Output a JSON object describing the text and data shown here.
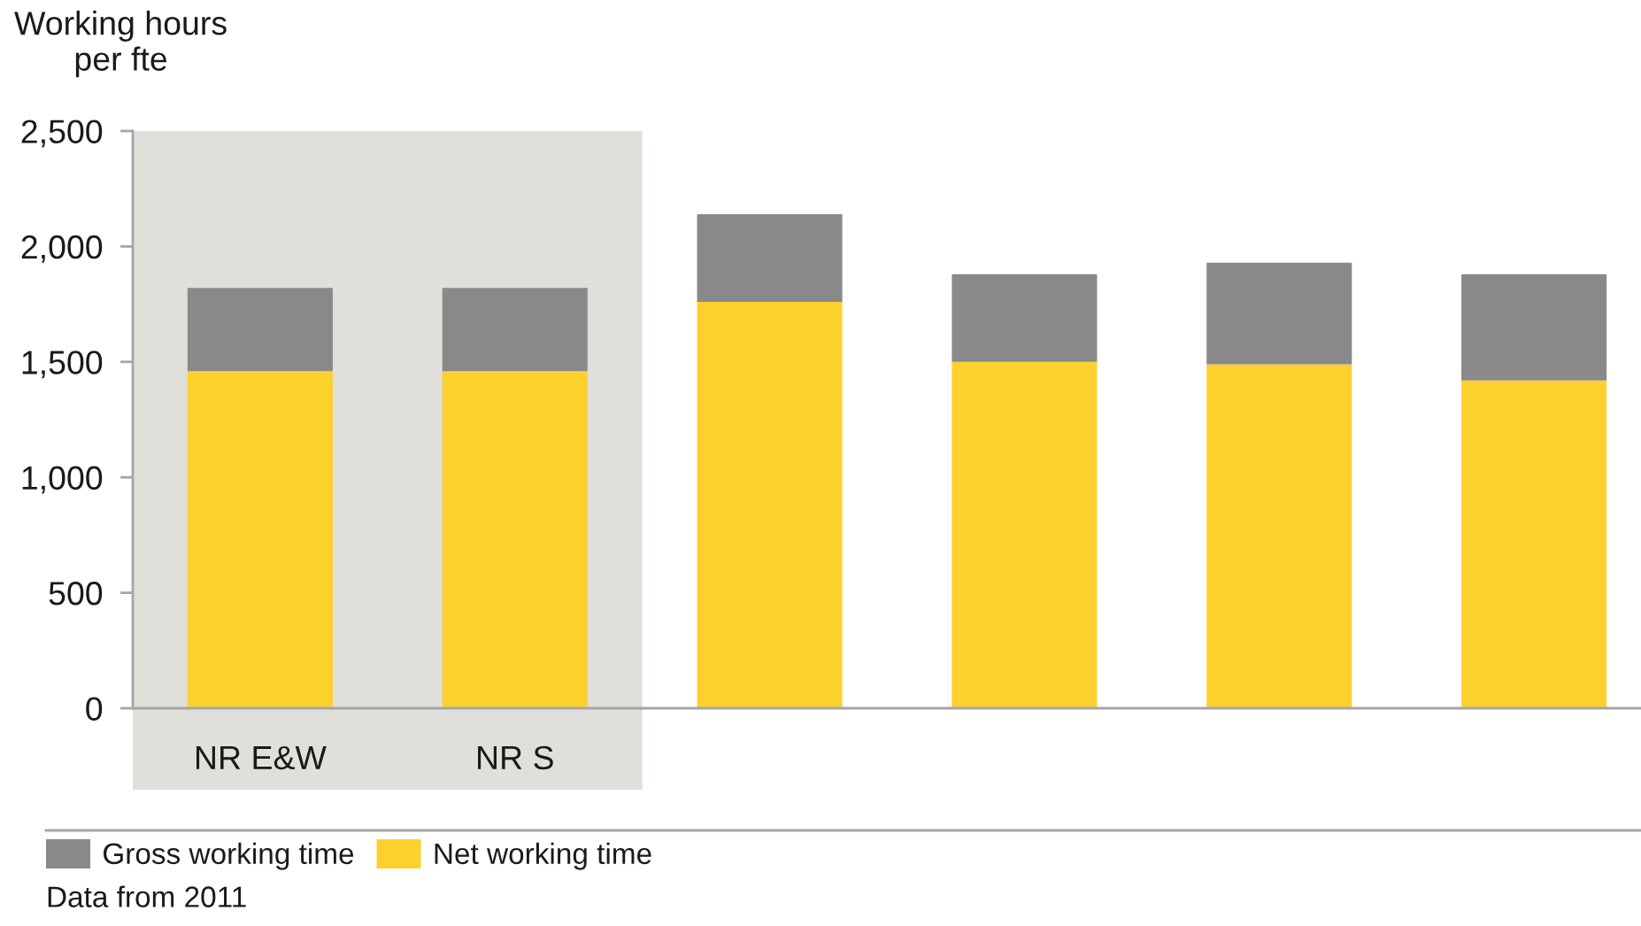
{
  "chart_data": {
    "type": "bar",
    "stacked": true,
    "ylabel": "Working hours\nper fte",
    "categories": [
      "NR E&W",
      "NR S",
      null,
      null,
      null,
      null
    ],
    "series": [
      {
        "name": "Net working time",
        "color": "#fcd12d",
        "values": [
          1460,
          1460,
          1760,
          1500,
          1490,
          1420
        ]
      },
      {
        "name": "Gross working time",
        "color": "#89898a",
        "values": [
          360,
          360,
          380,
          380,
          440,
          460
        ]
      }
    ],
    "ylim": [
      0,
      2500
    ],
    "yticks": [
      0,
      500,
      {
        "value": 1000,
        "label": "1,000"
      },
      {
        "value": 1500,
        "label": "1,500"
      },
      {
        "value": 2000,
        "label": "2,000"
      },
      {
        "value": 2500,
        "label": "2,500"
      }
    ],
    "bands": [
      {
        "axis": "x",
        "from": "NR E&W",
        "to": "NR S",
        "color": "#e0dfda"
      }
    ],
    "legend": "bottom left",
    "annotations": [
      "Data from 2011"
    ]
  }
}
